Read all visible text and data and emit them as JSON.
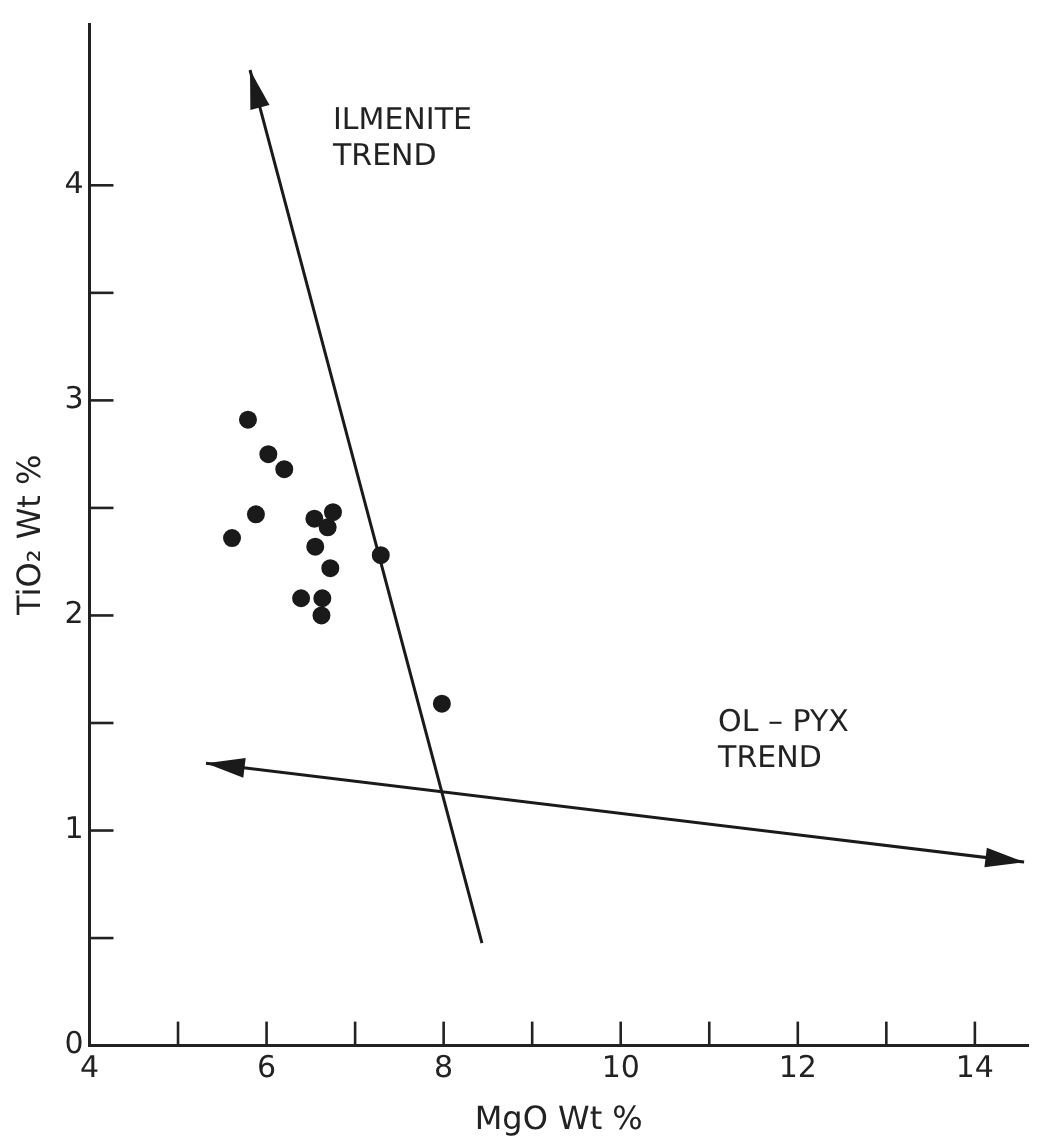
{
  "chart_data": {
    "type": "scatter",
    "xlabel": "MgO Wt %",
    "ylabel": "TiO₂ Wt %",
    "xlim": [
      4,
      14.6
    ],
    "ylim": [
      0,
      4.75
    ],
    "xticks": [
      4,
      {
        "value": 5,
        "label": null
      },
      6,
      {
        "value": 7,
        "label": null
      },
      8,
      {
        "value": 9,
        "label": null
      },
      10,
      {
        "value": 11,
        "label": null
      },
      12,
      {
        "value": 13,
        "label": null
      },
      14
    ],
    "yticks": [
      0,
      {
        "value": 0.5,
        "label": null
      },
      1,
      {
        "value": 1.5,
        "label": null
      },
      2,
      {
        "value": 2.5,
        "label": null
      },
      3,
      {
        "value": 3.5,
        "label": null
      },
      4
    ],
    "grid": false,
    "legend": false,
    "marker": "circle",
    "series": [
      {
        "color": "#1a1a1a",
        "x": [
          5.79,
          6.02,
          6.2,
          5.88,
          5.61,
          6.54,
          6.75,
          6.69,
          6.55,
          6.72,
          7.29,
          6.39,
          6.63,
          6.62,
          7.98
        ],
        "values": [
          2.91,
          2.75,
          2.68,
          2.47,
          2.36,
          2.45,
          2.48,
          2.41,
          2.32,
          2.22,
          2.28,
          2.08,
          2.08,
          2.0,
          1.59
        ]
      }
    ],
    "annotations": [
      "ILMENITE\nTREND",
      "OL – PYX\nTREND"
    ]
  }
}
